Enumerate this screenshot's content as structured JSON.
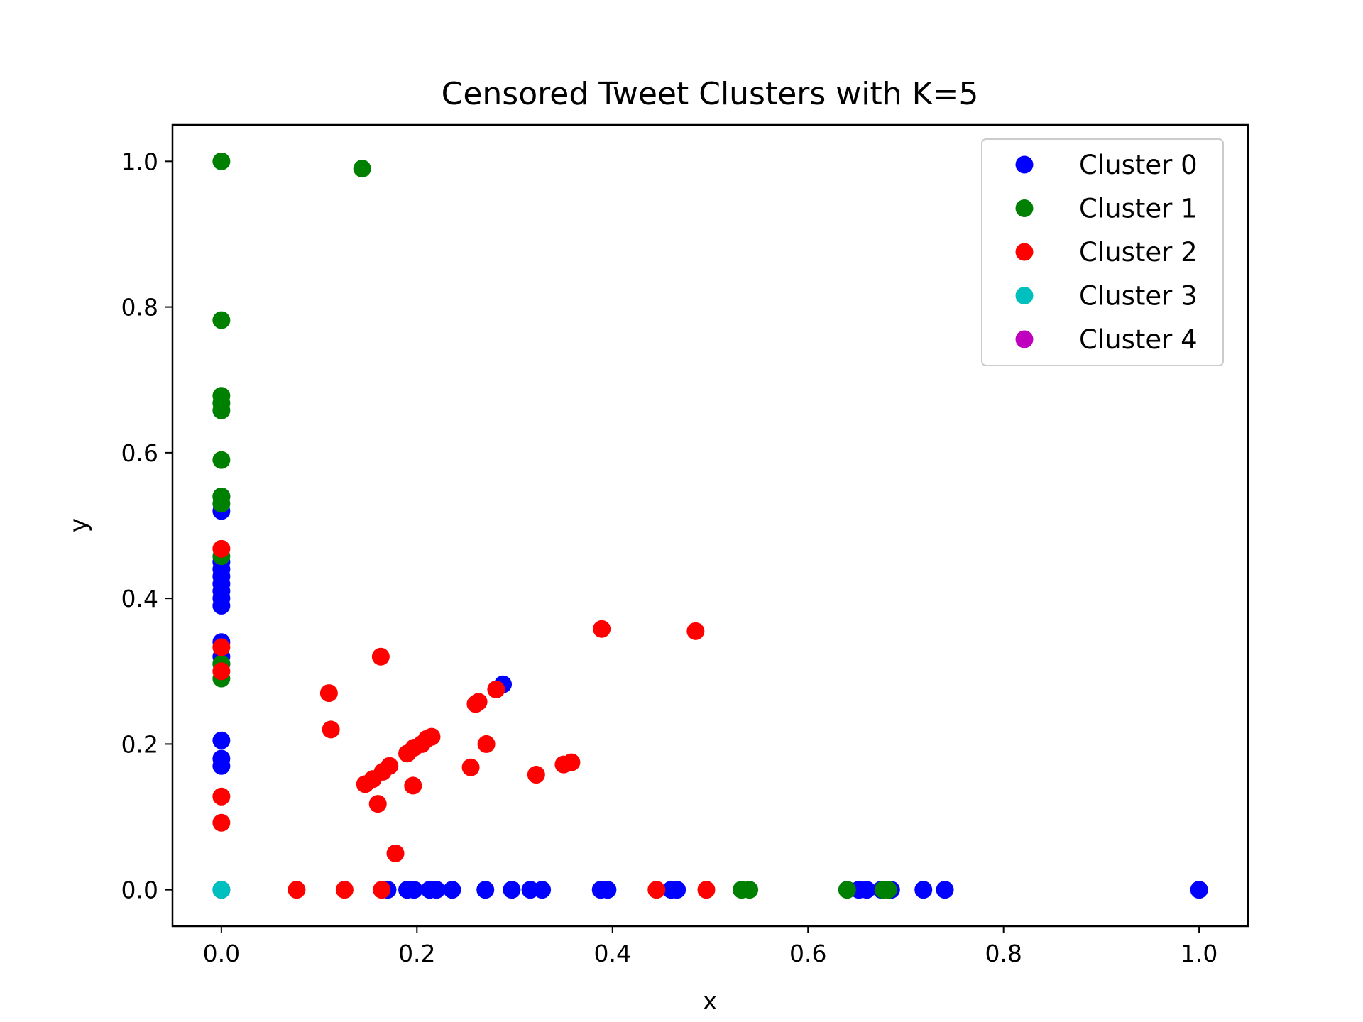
{
  "chart_data": {
    "type": "scatter",
    "title": "Censored Tweet Clusters with K=5",
    "xlabel": "x",
    "ylabel": "y",
    "xlim": [
      -0.05,
      1.05
    ],
    "ylim": [
      -0.05,
      1.05
    ],
    "xticks": [
      "0.0",
      "0.2",
      "0.4",
      "0.6",
      "0.8",
      "1.0"
    ],
    "yticks": [
      "0.0",
      "0.2",
      "0.4",
      "0.6",
      "0.8",
      "1.0"
    ],
    "grid": false,
    "legend_position": "top-right",
    "series": [
      {
        "name": "Cluster 0",
        "color": "#0000ff",
        "points": [
          [
            0,
            0.54
          ],
          [
            0,
            0.52
          ],
          [
            0,
            0.45
          ],
          [
            0,
            0.44
          ],
          [
            0,
            0.43
          ],
          [
            0,
            0.42
          ],
          [
            0,
            0.41
          ],
          [
            0,
            0.4
          ],
          [
            0,
            0.39
          ],
          [
            0,
            0.34
          ],
          [
            0,
            0.32
          ],
          [
            0,
            0.31
          ],
          [
            0,
            0.205
          ],
          [
            0,
            0.18
          ],
          [
            0,
            0.17
          ],
          [
            0,
            0.0
          ],
          [
            0.288,
            0.282
          ],
          [
            0.17,
            0.0
          ],
          [
            0.19,
            0.0
          ],
          [
            0.197,
            0.0
          ],
          [
            0.213,
            0.0
          ],
          [
            0.22,
            0.0
          ],
          [
            0.236,
            0.0
          ],
          [
            0.27,
            0.0
          ],
          [
            0.297,
            0.0
          ],
          [
            0.316,
            0.0
          ],
          [
            0.328,
            0.0
          ],
          [
            0.388,
            0.0
          ],
          [
            0.395,
            0.0
          ],
          [
            0.46,
            0.0
          ],
          [
            0.466,
            0.0
          ],
          [
            0.652,
            0.0
          ],
          [
            0.66,
            0.0
          ],
          [
            0.675,
            0.0
          ],
          [
            0.685,
            0.0
          ],
          [
            0.718,
            0.0
          ],
          [
            0.74,
            0.0
          ],
          [
            1.0,
            0.0
          ]
        ]
      },
      {
        "name": "Cluster 1",
        "color": "#008000",
        "points": [
          [
            0,
            1.0
          ],
          [
            0.144,
            0.99
          ],
          [
            0,
            0.782
          ],
          [
            0,
            0.678
          ],
          [
            0,
            0.668
          ],
          [
            0,
            0.658
          ],
          [
            0,
            0.59
          ],
          [
            0,
            0.54
          ],
          [
            0,
            0.53
          ],
          [
            0,
            0.458
          ],
          [
            0,
            0.31
          ],
          [
            0,
            0.29
          ],
          [
            0.532,
            0.0
          ],
          [
            0.54,
            0.0
          ],
          [
            0.64,
            0.0
          ],
          [
            0.677,
            0.0
          ],
          [
            0.682,
            0.0
          ]
        ]
      },
      {
        "name": "Cluster 2",
        "color": "#ff0000",
        "points": [
          [
            0,
            0.468
          ],
          [
            0,
            0.333
          ],
          [
            0,
            0.3
          ],
          [
            0,
            0.128
          ],
          [
            0,
            0.092
          ],
          [
            0.11,
            0.27
          ],
          [
            0.112,
            0.22
          ],
          [
            0.163,
            0.32
          ],
          [
            0.147,
            0.145
          ],
          [
            0.155,
            0.152
          ],
          [
            0.16,
            0.118
          ],
          [
            0.165,
            0.162
          ],
          [
            0.172,
            0.17
          ],
          [
            0.178,
            0.05
          ],
          [
            0.19,
            0.187
          ],
          [
            0.197,
            0.195
          ],
          [
            0.205,
            0.2
          ],
          [
            0.21,
            0.207
          ],
          [
            0.215,
            0.21
          ],
          [
            0.196,
            0.143
          ],
          [
            0.255,
            0.168
          ],
          [
            0.26,
            0.255
          ],
          [
            0.263,
            0.258
          ],
          [
            0.271,
            0.2
          ],
          [
            0.281,
            0.275
          ],
          [
            0.322,
            0.158
          ],
          [
            0.35,
            0.172
          ],
          [
            0.358,
            0.175
          ],
          [
            0.389,
            0.358
          ],
          [
            0.485,
            0.355
          ],
          [
            0.077,
            0.0
          ],
          [
            0.126,
            0.0
          ],
          [
            0.164,
            0.0
          ],
          [
            0.445,
            0.0
          ],
          [
            0.496,
            0.0
          ]
        ]
      },
      {
        "name": "Cluster 3",
        "color": "#00bfbf",
        "points": [
          [
            0,
            0.0
          ]
        ]
      },
      {
        "name": "Cluster 4",
        "color": "#bf00bf",
        "points": []
      }
    ]
  }
}
